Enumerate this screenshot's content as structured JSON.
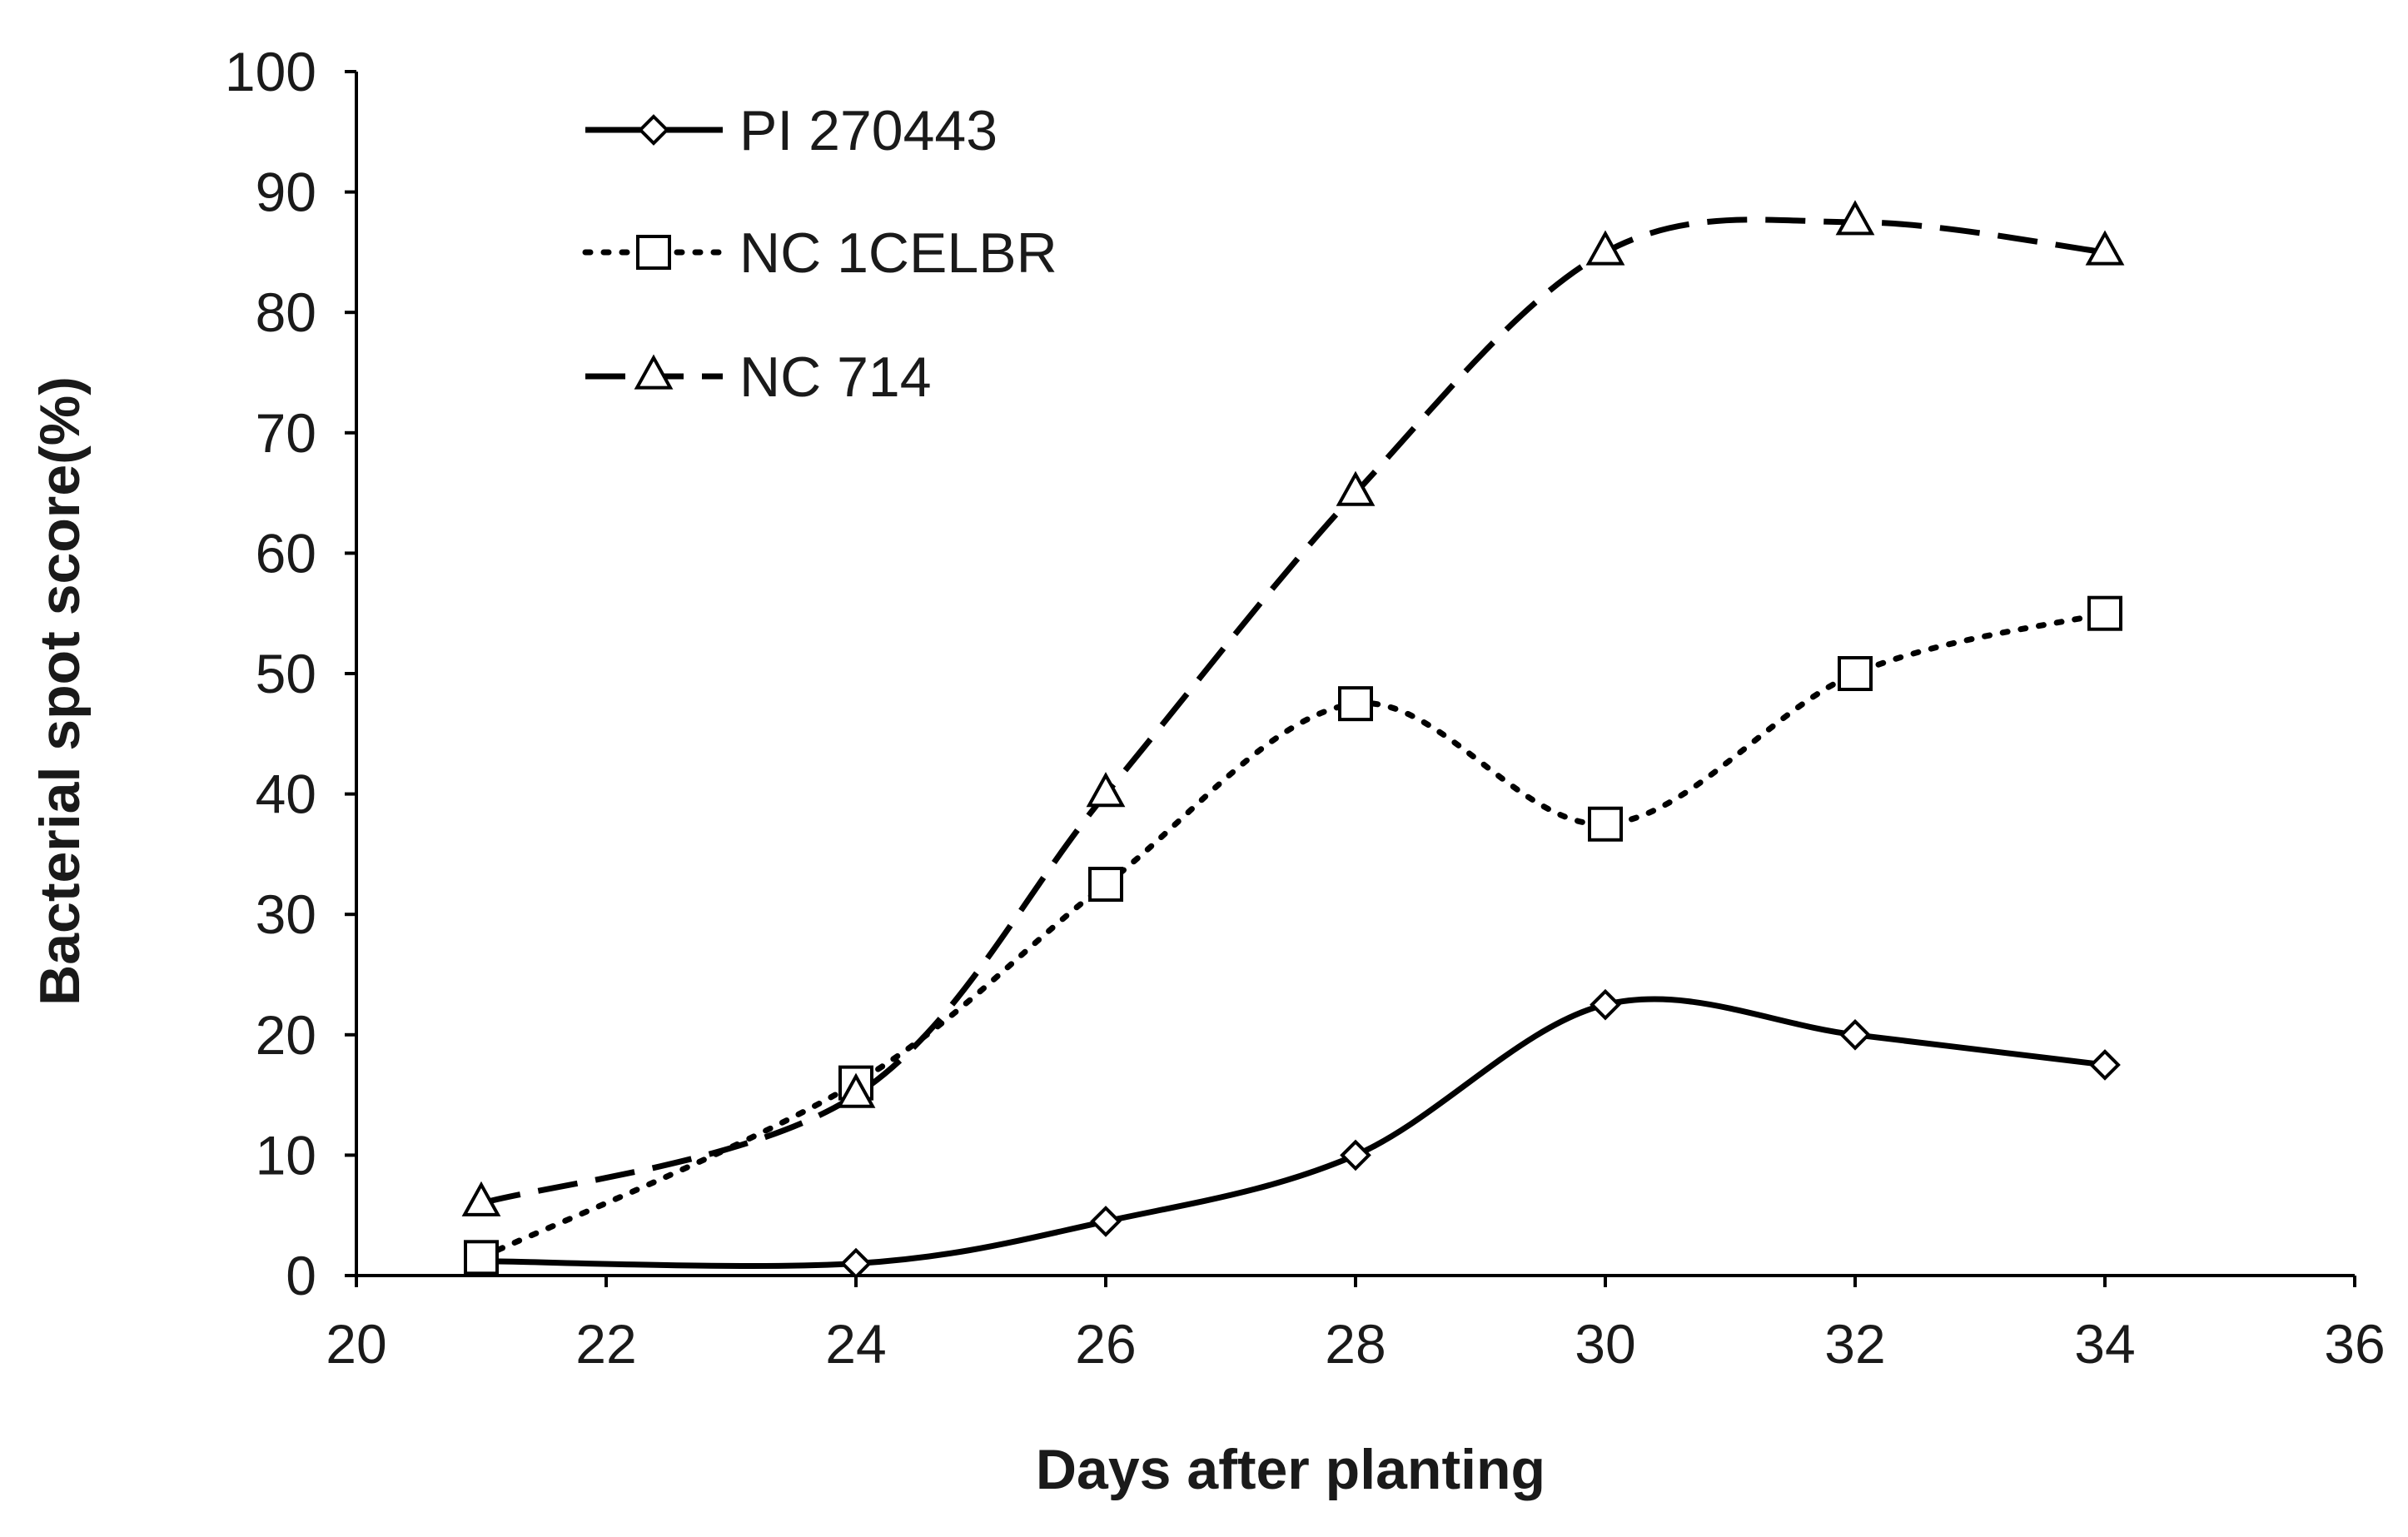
{
  "chart_data": {
    "type": "line",
    "title": "",
    "xlabel": "Days after planting",
    "ylabel": "Bacterial spot score(%)",
    "xlim": [
      20,
      36
    ],
    "ylim": [
      0,
      100
    ],
    "xticks": [
      "20",
      "22",
      "24",
      "26",
      "28",
      "30",
      "32",
      "34",
      "36"
    ],
    "yticks": [
      "0",
      "10",
      "20",
      "30",
      "40",
      "50",
      "60",
      "70",
      "80",
      "90",
      "100"
    ],
    "grid": false,
    "legend_position": "top-left",
    "x": [
      21,
      24,
      26,
      28,
      30,
      32,
      34
    ],
    "series": [
      {
        "name": "PI 270443",
        "marker": "diamond",
        "line_style": "solid",
        "color": "#000000",
        "values": [
          1.2,
          1.0,
          4.5,
          10.0,
          22.5,
          20.0,
          17.5
        ]
      },
      {
        "name": "NC 1CELBR",
        "marker": "square",
        "line_style": "dotted",
        "color": "#000000",
        "values": [
          1.5,
          16.0,
          32.5,
          47.5,
          37.5,
          50.0,
          55.0
        ]
      },
      {
        "name": "NC 714",
        "marker": "triangle",
        "line_style": "dashed",
        "color": "#000000",
        "values": [
          6.0,
          15.0,
          40.0,
          65.0,
          85.0,
          87.5,
          85.0
        ]
      }
    ]
  }
}
